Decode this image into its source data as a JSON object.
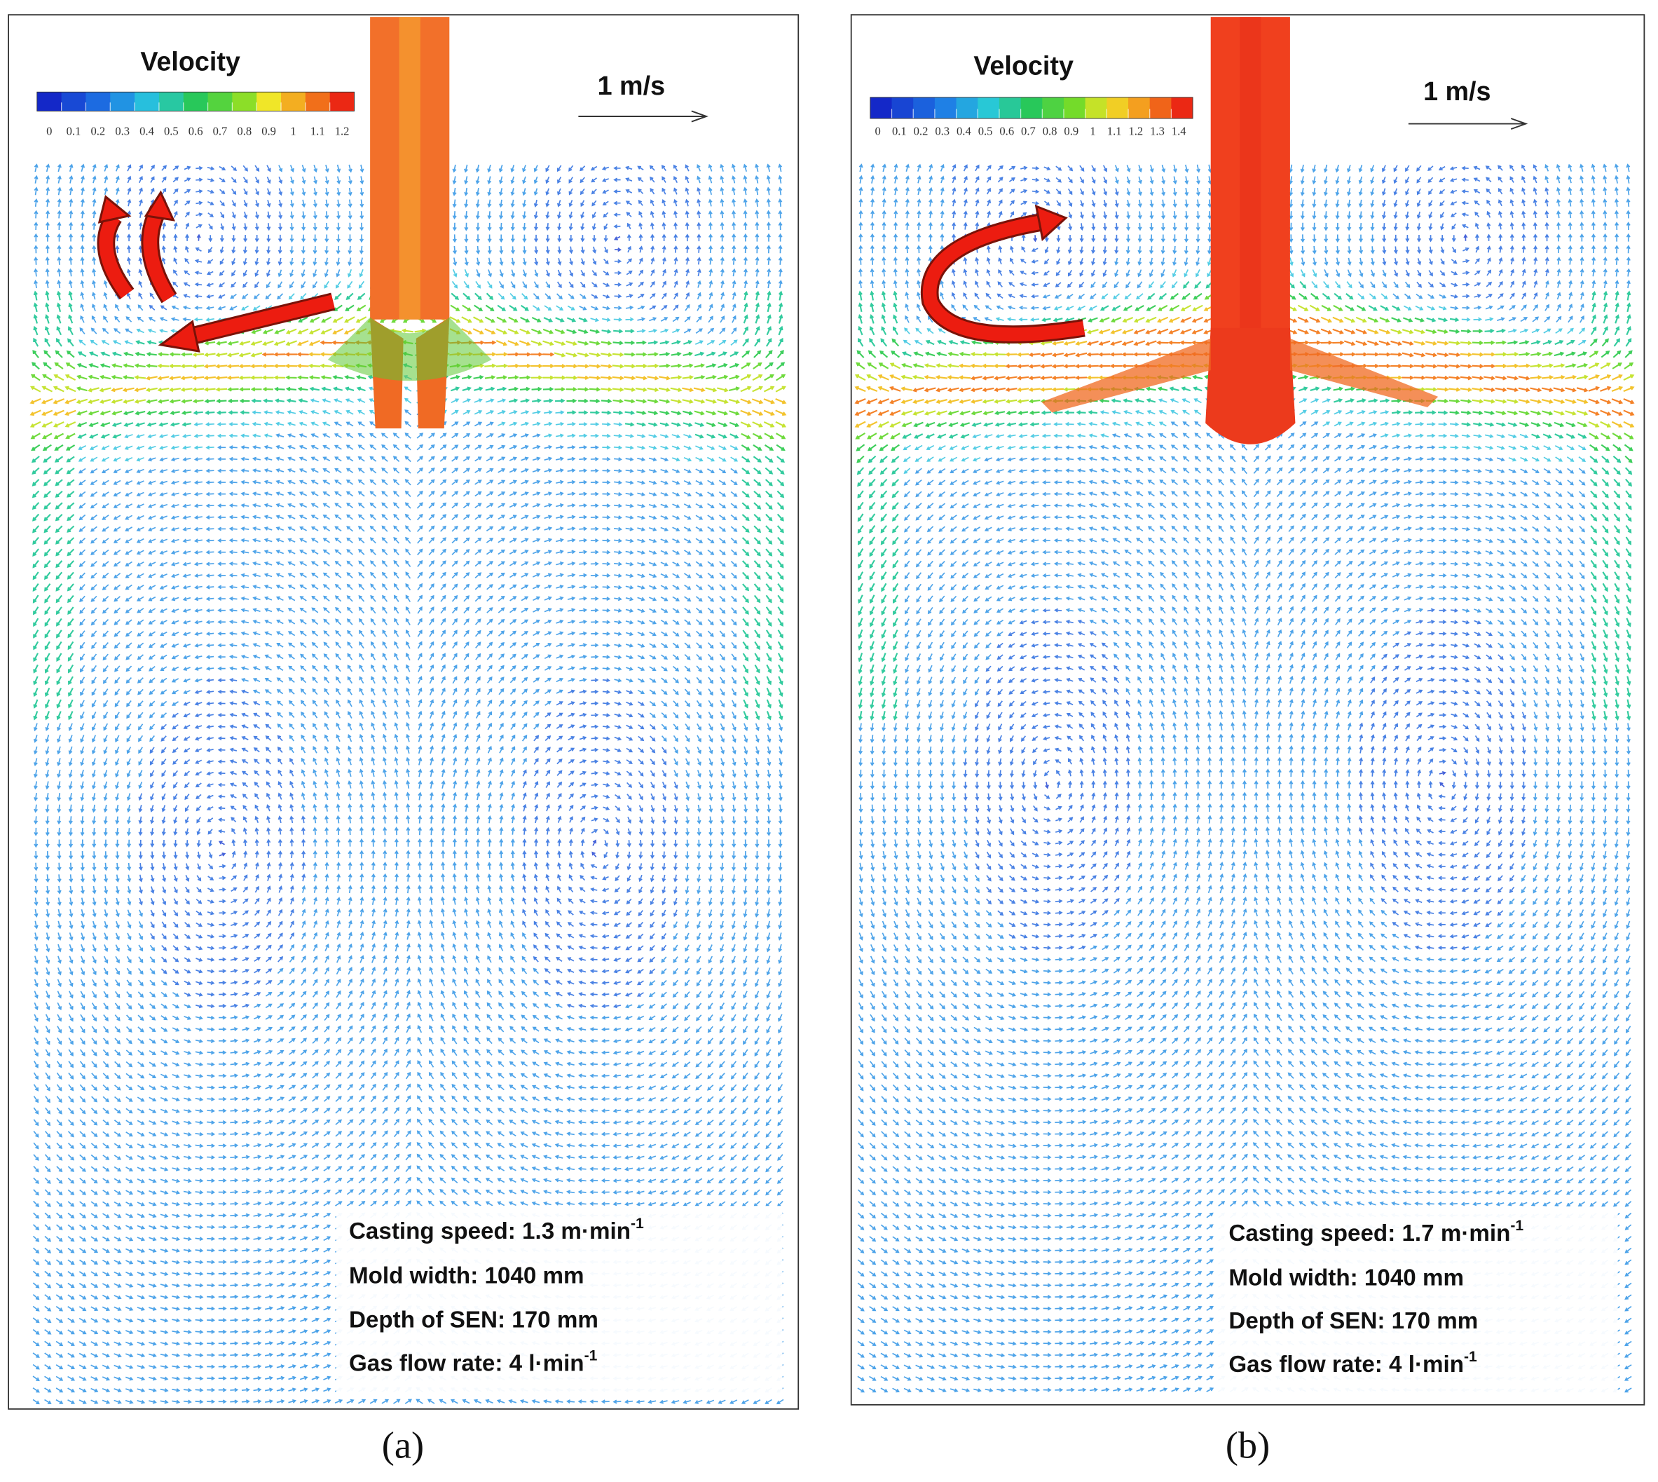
{
  "panels": [
    {
      "legend_title": "Velocity",
      "colorbar_ticks": [
        0,
        0.1,
        0.2,
        0.3,
        0.4,
        0.5,
        0.6,
        0.7,
        0.8,
        0.9,
        1,
        1.1,
        1.2
      ],
      "scale_label": "1 m/s",
      "info": [
        {
          "text": "Casting speed: 1.3 m·min",
          "sup": "-1"
        },
        {
          "text": "Mold width: 1040 mm"
        },
        {
          "text": "Depth of SEN: 170 mm"
        },
        {
          "text": "Gas flow rate: 4 l·min",
          "sup": "-1"
        }
      ],
      "caption": "(a)"
    },
    {
      "legend_title": "Velocity",
      "colorbar_ticks": [
        0,
        0.1,
        0.2,
        0.3,
        0.4,
        0.5,
        0.6,
        0.7,
        0.8,
        0.9,
        1,
        1.1,
        1.2,
        1.3,
        1.4
      ],
      "scale_label": "1 m/s",
      "info": [
        {
          "text": "Casting speed: 1.7 m·min",
          "sup": "-1"
        },
        {
          "text": "Mold width: 1040 mm"
        },
        {
          "text": "Depth of SEN: 170 mm"
        },
        {
          "text": "Gas flow rate: 4 l·min",
          "sup": "-1"
        }
      ],
      "caption": "(b)"
    }
  ]
}
